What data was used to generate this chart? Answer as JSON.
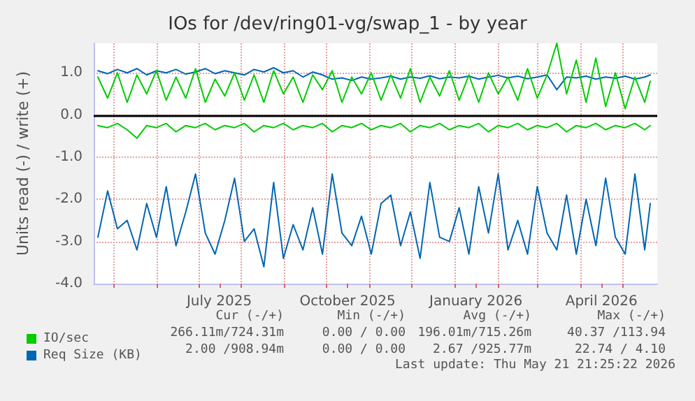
{
  "chart_data": {
    "type": "line",
    "title": "IOs for /dev/ring01-vg/swap_1 - by year",
    "ylabel": "Units read (-) / write (+)",
    "x": [
      "2025-04-20",
      "2025-04-27",
      "2025-05-04",
      "2025-05-11",
      "2025-05-18",
      "2025-05-25",
      "2025-06-01",
      "2025-06-08",
      "2025-06-15",
      "2025-06-22",
      "2025-06-29",
      "2025-07-06",
      "2025-07-13",
      "2025-07-20",
      "2025-07-27",
      "2025-08-03",
      "2025-08-10",
      "2025-08-17",
      "2025-08-24",
      "2025-08-31",
      "2025-09-07",
      "2025-09-14",
      "2025-09-21",
      "2025-09-28",
      "2025-10-05",
      "2025-10-12",
      "2025-10-19",
      "2025-10-26",
      "2025-11-02",
      "2025-11-09",
      "2025-11-16",
      "2025-11-23",
      "2025-11-30",
      "2025-12-07",
      "2025-12-14",
      "2025-12-21",
      "2025-12-28",
      "2026-01-04",
      "2026-01-11",
      "2026-01-18",
      "2026-01-25",
      "2026-02-01",
      "2026-02-08",
      "2026-02-15",
      "2026-02-22",
      "2026-03-01",
      "2026-03-08",
      "2026-03-15",
      "2026-03-22",
      "2026-03-29",
      "2026-04-05",
      "2026-04-12",
      "2026-04-19",
      "2026-04-26",
      "2026-05-03",
      "2026-05-10",
      "2026-05-17",
      "2026-05-21"
    ],
    "series": [
      {
        "color": "#0066b3",
        "values": [
          -2.9,
          -1.8,
          -2.7,
          -2.5,
          -3.2,
          -2.1,
          -2.9,
          -1.7,
          -3.1,
          -2.3,
          -1.4,
          -2.8,
          -3.3,
          -2.5,
          -1.5,
          -3.0,
          -2.7,
          -3.6,
          -1.6,
          -3.4,
          -2.6,
          -3.2,
          -2.2,
          -3.3,
          -1.4,
          -2.8,
          -3.1,
          -2.4,
          -3.3,
          -2.1,
          -1.9,
          -3.1,
          -2.3,
          -3.4,
          -1.6,
          -2.9,
          -3.0,
          -2.2,
          -3.3,
          -1.7,
          -2.8,
          -1.4,
          -3.2,
          -2.5,
          -3.3,
          -1.7,
          -2.8,
          -3.2,
          -1.9,
          -3.3,
          -2.0,
          -3.1,
          -1.5,
          -2.9,
          -3.3,
          -1.4,
          -3.2,
          -2.1
        ]
      },
      {
        "name": "Req Size (KB)",
        "color": "#0066b3",
        "values": [
          1.05,
          0.98,
          1.08,
          1.0,
          1.1,
          0.95,
          1.05,
          1.0,
          1.08,
          0.97,
          1.02,
          1.1,
          0.98,
          1.05,
          1.0,
          0.95,
          1.08,
          1.02,
          1.12,
          1.0,
          1.05,
          0.9,
          1.02,
          0.95,
          0.85,
          0.88,
          0.82,
          0.9,
          0.85,
          0.88,
          0.92,
          0.85,
          0.9,
          0.87,
          0.93,
          0.86,
          0.9,
          0.88,
          0.92,
          0.85,
          0.9,
          0.94,
          0.88,
          0.92,
          0.86,
          0.9,
          0.95,
          0.6,
          0.9,
          0.88,
          0.92,
          0.85,
          0.9,
          0.87,
          0.92,
          0.85,
          0.9,
          0.95
        ]
      },
      {
        "color": "#00cc00",
        "values": [
          -0.25,
          -0.3,
          -0.2,
          -0.35,
          -0.55,
          -0.25,
          -0.3,
          -0.2,
          -0.4,
          -0.25,
          -0.3,
          -0.2,
          -0.35,
          -0.25,
          -0.3,
          -0.2,
          -0.4,
          -0.25,
          -0.3,
          -0.2,
          -0.35,
          -0.25,
          -0.3,
          -0.2,
          -0.4,
          -0.25,
          -0.3,
          -0.2,
          -0.35,
          -0.25,
          -0.3,
          -0.2,
          -0.4,
          -0.25,
          -0.3,
          -0.2,
          -0.35,
          -0.25,
          -0.3,
          -0.2,
          -0.4,
          -0.25,
          -0.3,
          -0.2,
          -0.35,
          -0.25,
          -0.3,
          -0.2,
          -0.4,
          -0.25,
          -0.3,
          -0.2,
          -0.35,
          -0.25,
          -0.3,
          -0.2,
          -0.35,
          -0.25
        ]
      },
      {
        "name": "IO/sec",
        "color": "#00cc00",
        "values": [
          0.9,
          0.4,
          1.0,
          0.3,
          0.95,
          0.5,
          1.05,
          0.35,
          0.9,
          0.4,
          1.1,
          0.3,
          0.85,
          0.45,
          1.0,
          0.35,
          0.95,
          0.3,
          1.05,
          0.5,
          0.9,
          0.3,
          0.95,
          0.6,
          1.05,
          0.3,
          0.9,
          0.5,
          1.0,
          0.35,
          0.95,
          0.4,
          1.1,
          0.3,
          0.9,
          0.45,
          1.05,
          0.35,
          0.95,
          0.3,
          1.0,
          0.5,
          0.9,
          0.35,
          1.1,
          0.4,
          0.95,
          1.7,
          0.5,
          1.3,
          0.3,
          1.35,
          0.2,
          1.0,
          0.15,
          0.9,
          0.3,
          0.8
        ]
      }
    ],
    "xlim": [
      "2025-04-17",
      "2026-05-26"
    ],
    "xticks": [
      {
        "value": "2025-05-01",
        "label": null
      },
      {
        "value": "2025-06-01",
        "label": null
      },
      {
        "value": "2025-07-01",
        "label": null
      },
      {
        "value": "2025-07-16",
        "label": "July 2025"
      },
      {
        "value": "2025-08-01",
        "label": null
      },
      {
        "value": "2025-09-01",
        "label": null
      },
      {
        "value": "2025-10-01",
        "label": null
      },
      {
        "value": "2025-10-16",
        "label": "October 2025"
      },
      {
        "value": "2025-11-01",
        "label": null
      },
      {
        "value": "2025-12-01",
        "label": null
      },
      {
        "value": "2026-01-01",
        "label": null
      },
      {
        "value": "2026-01-16",
        "label": "January 2026"
      },
      {
        "value": "2026-02-01",
        "label": null
      },
      {
        "value": "2026-03-01",
        "label": null
      },
      {
        "value": "2026-04-01",
        "label": null
      },
      {
        "value": "2026-04-16",
        "label": "April 2026"
      },
      {
        "value": "2026-05-01",
        "label": null
      }
    ],
    "ylim": [
      -4,
      1.7
    ],
    "yticks": [
      {
        "value": -4,
        "label": "-4.0"
      },
      {
        "value": -3,
        "label": "-3.0"
      },
      {
        "value": -2,
        "label": "-2.0"
      },
      {
        "value": -1,
        "label": "-1.0"
      },
      {
        "value": 0,
        "label": "0.0"
      },
      {
        "value": 1,
        "label": "1.0"
      }
    ],
    "ref_lines": [
      {
        "axis": "y",
        "value": 0,
        "color": "#000000"
      }
    ],
    "grid": true,
    "legend": "bottom left",
    "marker": "none",
    "line_style": "solid",
    "annotations": [
      "Cur (-/+)",
      "Min (-/+)",
      "Avg (-/+)",
      "Max (-/+)",
      "266.11m/724.31m",
      "0.00 / 0.00",
      "196.01m/715.26m",
      "40.37 /113.94",
      "2.00 /908.94m",
      "0.00 / 0.00",
      "2.67 /925.77m",
      "22.74 / 4.10",
      "Last update: Thu May 21 21:25:22 2026"
    ]
  }
}
